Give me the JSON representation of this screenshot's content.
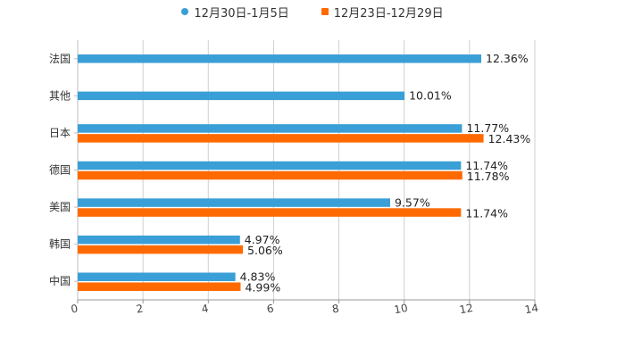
{
  "chart_data": {
    "type": "bar",
    "orientation": "horizontal",
    "categories": [
      "法国",
      "其他",
      "日本",
      "德国",
      "美国",
      "韩国",
      "中国"
    ],
    "series": [
      {
        "name": "12月30日-1月5日",
        "color": "#3a9fd6",
        "marker": "circle",
        "values": [
          12.36,
          10.01,
          11.77,
          11.74,
          9.57,
          4.97,
          4.83
        ],
        "labels": [
          "12.36%",
          "10.01%",
          "11.77%",
          "11.74%",
          "9.57%",
          "4.97%",
          "4.83%"
        ]
      },
      {
        "name": "12月23日-12月29日",
        "color": "#ff6a00",
        "marker": "square",
        "values": [
          null,
          null,
          12.43,
          11.78,
          11.74,
          5.06,
          4.99
        ],
        "labels": [
          null,
          null,
          "12.43%",
          "11.78%",
          "11.74%",
          "5.06%",
          "4.99%"
        ]
      }
    ],
    "xlim": [
      0,
      14
    ],
    "xticks": [
      "0",
      "2",
      "4",
      "6",
      "8",
      "10",
      "12",
      "14"
    ],
    "grid": true,
    "legend_position": "top-center",
    "title": "",
    "xlabel": "",
    "ylabel": ""
  }
}
